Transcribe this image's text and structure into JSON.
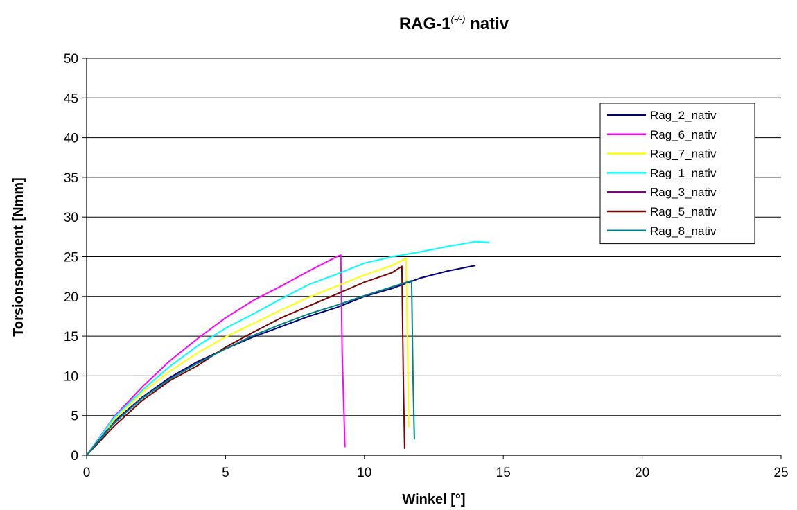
{
  "chart_data": {
    "type": "line",
    "title": "RAG-1",
    "title_superscript": "(-/-)",
    "title_suffix": " nativ",
    "xlabel": "Winkel [°]",
    "ylabel": "Torsionsmoment [Nmm]",
    "xlim": [
      0,
      25
    ],
    "ylim": [
      0,
      50
    ],
    "x_ticks": [
      "0",
      "5",
      "10",
      "15",
      "20",
      "25"
    ],
    "y_ticks": [
      "0",
      "5",
      "10",
      "15",
      "20",
      "25",
      "30",
      "35",
      "40",
      "45",
      "50"
    ],
    "grid": "horizontal",
    "legend_position": "top-right",
    "series": [
      {
        "name": "Rag_2_nativ",
        "color": "#000080",
        "points": [
          [
            0,
            0
          ],
          [
            1,
            4.3
          ],
          [
            2,
            7.3
          ],
          [
            3,
            9.8
          ],
          [
            4,
            11.8
          ],
          [
            5,
            13.4
          ],
          [
            6,
            14.9
          ],
          [
            7,
            16.2
          ],
          [
            8,
            17.5
          ],
          [
            9,
            18.6
          ],
          [
            10,
            20.0
          ],
          [
            11,
            21.0
          ],
          [
            12,
            22.3
          ],
          [
            13,
            23.2
          ],
          [
            14,
            23.9
          ]
        ]
      },
      {
        "name": "Rag_6_nativ",
        "color": "#ff00ff",
        "points": [
          [
            0,
            0
          ],
          [
            1,
            4.9
          ],
          [
            2,
            8.6
          ],
          [
            3,
            11.9
          ],
          [
            4,
            14.7
          ],
          [
            5,
            17.3
          ],
          [
            6,
            19.5
          ],
          [
            7,
            21.3
          ],
          [
            8,
            23.2
          ],
          [
            9,
            25.0
          ],
          [
            9.15,
            25.2
          ],
          [
            9.2,
            13.0
          ],
          [
            9.3,
            1.0
          ]
        ]
      },
      {
        "name": "Rag_7_nativ",
        "color": "#ffff00",
        "points": [
          [
            0,
            0
          ],
          [
            1,
            4.5
          ],
          [
            2,
            7.9
          ],
          [
            3,
            10.6
          ],
          [
            4,
            12.9
          ],
          [
            5,
            14.9
          ],
          [
            6,
            16.6
          ],
          [
            7,
            18.3
          ],
          [
            8,
            19.9
          ],
          [
            9,
            21.3
          ],
          [
            10,
            22.7
          ],
          [
            11,
            23.9
          ],
          [
            11.5,
            24.8
          ],
          [
            11.6,
            3.5
          ]
        ]
      },
      {
        "name": "Rag_1_nativ",
        "color": "#00ffff",
        "points": [
          [
            0,
            0
          ],
          [
            1,
            4.8
          ],
          [
            2,
            8.2
          ],
          [
            3,
            11.2
          ],
          [
            4,
            13.8
          ],
          [
            5,
            16.0
          ],
          [
            6,
            17.8
          ],
          [
            7,
            19.7
          ],
          [
            8,
            21.5
          ],
          [
            9,
            22.8
          ],
          [
            10,
            24.2
          ],
          [
            11,
            25.0
          ],
          [
            12,
            25.6
          ],
          [
            13,
            26.3
          ],
          [
            14,
            26.9
          ],
          [
            14.5,
            26.8
          ]
        ]
      },
      {
        "name": "Rag_3_nativ",
        "color": "#800080",
        "points": [
          [
            0,
            0
          ],
          [
            0.7,
            3.0
          ],
          [
            1.4,
            5.4
          ]
        ]
      },
      {
        "name": "Rag_5_nativ",
        "color": "#800000",
        "points": [
          [
            0,
            0
          ],
          [
            1,
            3.7
          ],
          [
            2,
            6.9
          ],
          [
            3,
            9.4
          ],
          [
            4,
            11.3
          ],
          [
            5,
            13.6
          ],
          [
            6,
            15.5
          ],
          [
            7,
            17.3
          ],
          [
            8,
            18.8
          ],
          [
            9,
            20.3
          ],
          [
            10,
            21.8
          ],
          [
            11,
            23.0
          ],
          [
            11.35,
            23.8
          ],
          [
            11.4,
            10.0
          ],
          [
            11.45,
            0.8
          ]
        ]
      },
      {
        "name": "Rag_8_nativ",
        "color": "#008080",
        "points": [
          [
            0,
            0
          ],
          [
            1,
            4.1
          ],
          [
            2,
            7.2
          ],
          [
            3,
            9.6
          ],
          [
            4,
            11.6
          ],
          [
            5,
            13.4
          ],
          [
            6,
            15.1
          ],
          [
            7,
            16.5
          ],
          [
            8,
            17.8
          ],
          [
            9,
            18.9
          ],
          [
            10,
            20.1
          ],
          [
            11,
            21.2
          ],
          [
            11.7,
            22.0
          ],
          [
            11.75,
            10.0
          ],
          [
            11.8,
            2.0
          ]
        ]
      }
    ]
  }
}
